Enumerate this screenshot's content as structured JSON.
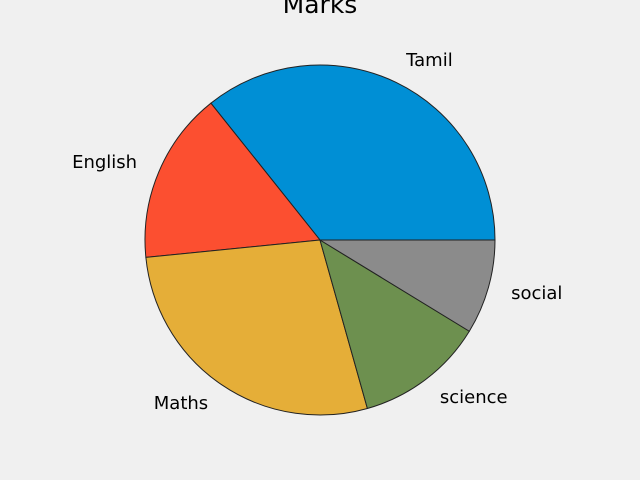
{
  "chart_data": {
    "type": "pie",
    "title": "Marks",
    "labels": [
      "Tamil",
      "English",
      "Maths",
      "science",
      "social"
    ],
    "values": [
      90,
      40,
      70,
      30,
      22
    ],
    "colors": [
      "#008fd5",
      "#fc4f30",
      "#e5ae38",
      "#6d904f",
      "#8b8b8b"
    ],
    "start_angle_deg": 0,
    "direction": "counterclockwise"
  }
}
